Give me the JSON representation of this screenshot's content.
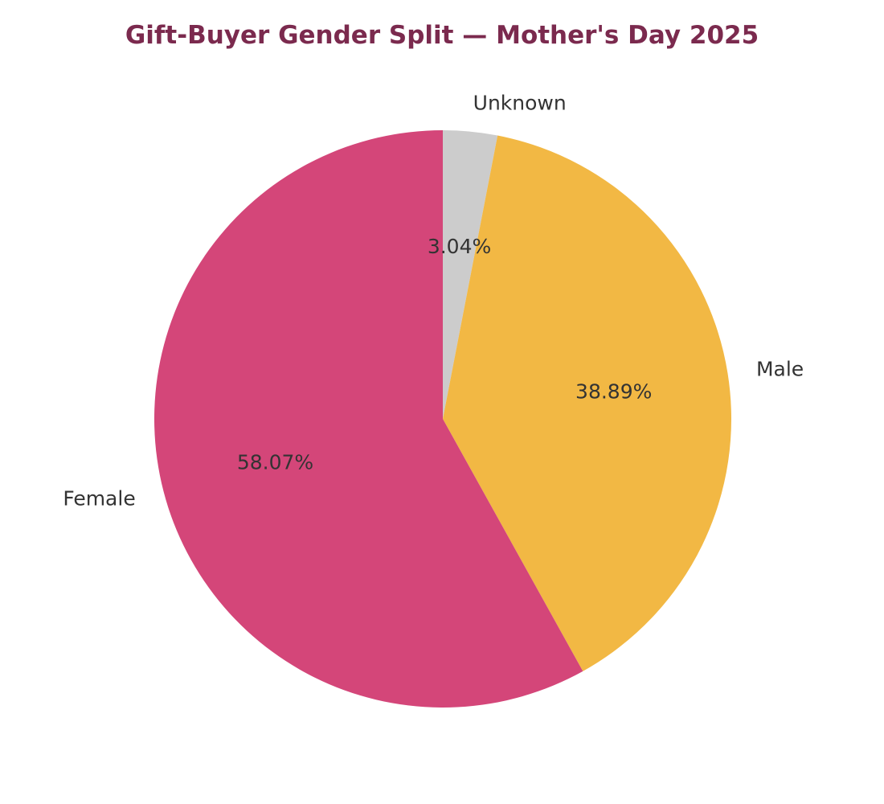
{
  "chart_data": {
    "type": "pie",
    "title": "Gift-Buyer Gender Split — Mother's Day 2025",
    "slices": [
      {
        "label": "Unknown",
        "value": 3.04,
        "pct_label": "3.04%",
        "color": "#cccccc"
      },
      {
        "label": "Male",
        "value": 38.89,
        "pct_label": "38.89%",
        "color": "#f2b844"
      },
      {
        "label": "Female",
        "value": 58.07,
        "pct_label": "58.07%",
        "color": "#d44679"
      }
    ],
    "start_angle_deg": 90,
    "direction": "clockwise"
  }
}
